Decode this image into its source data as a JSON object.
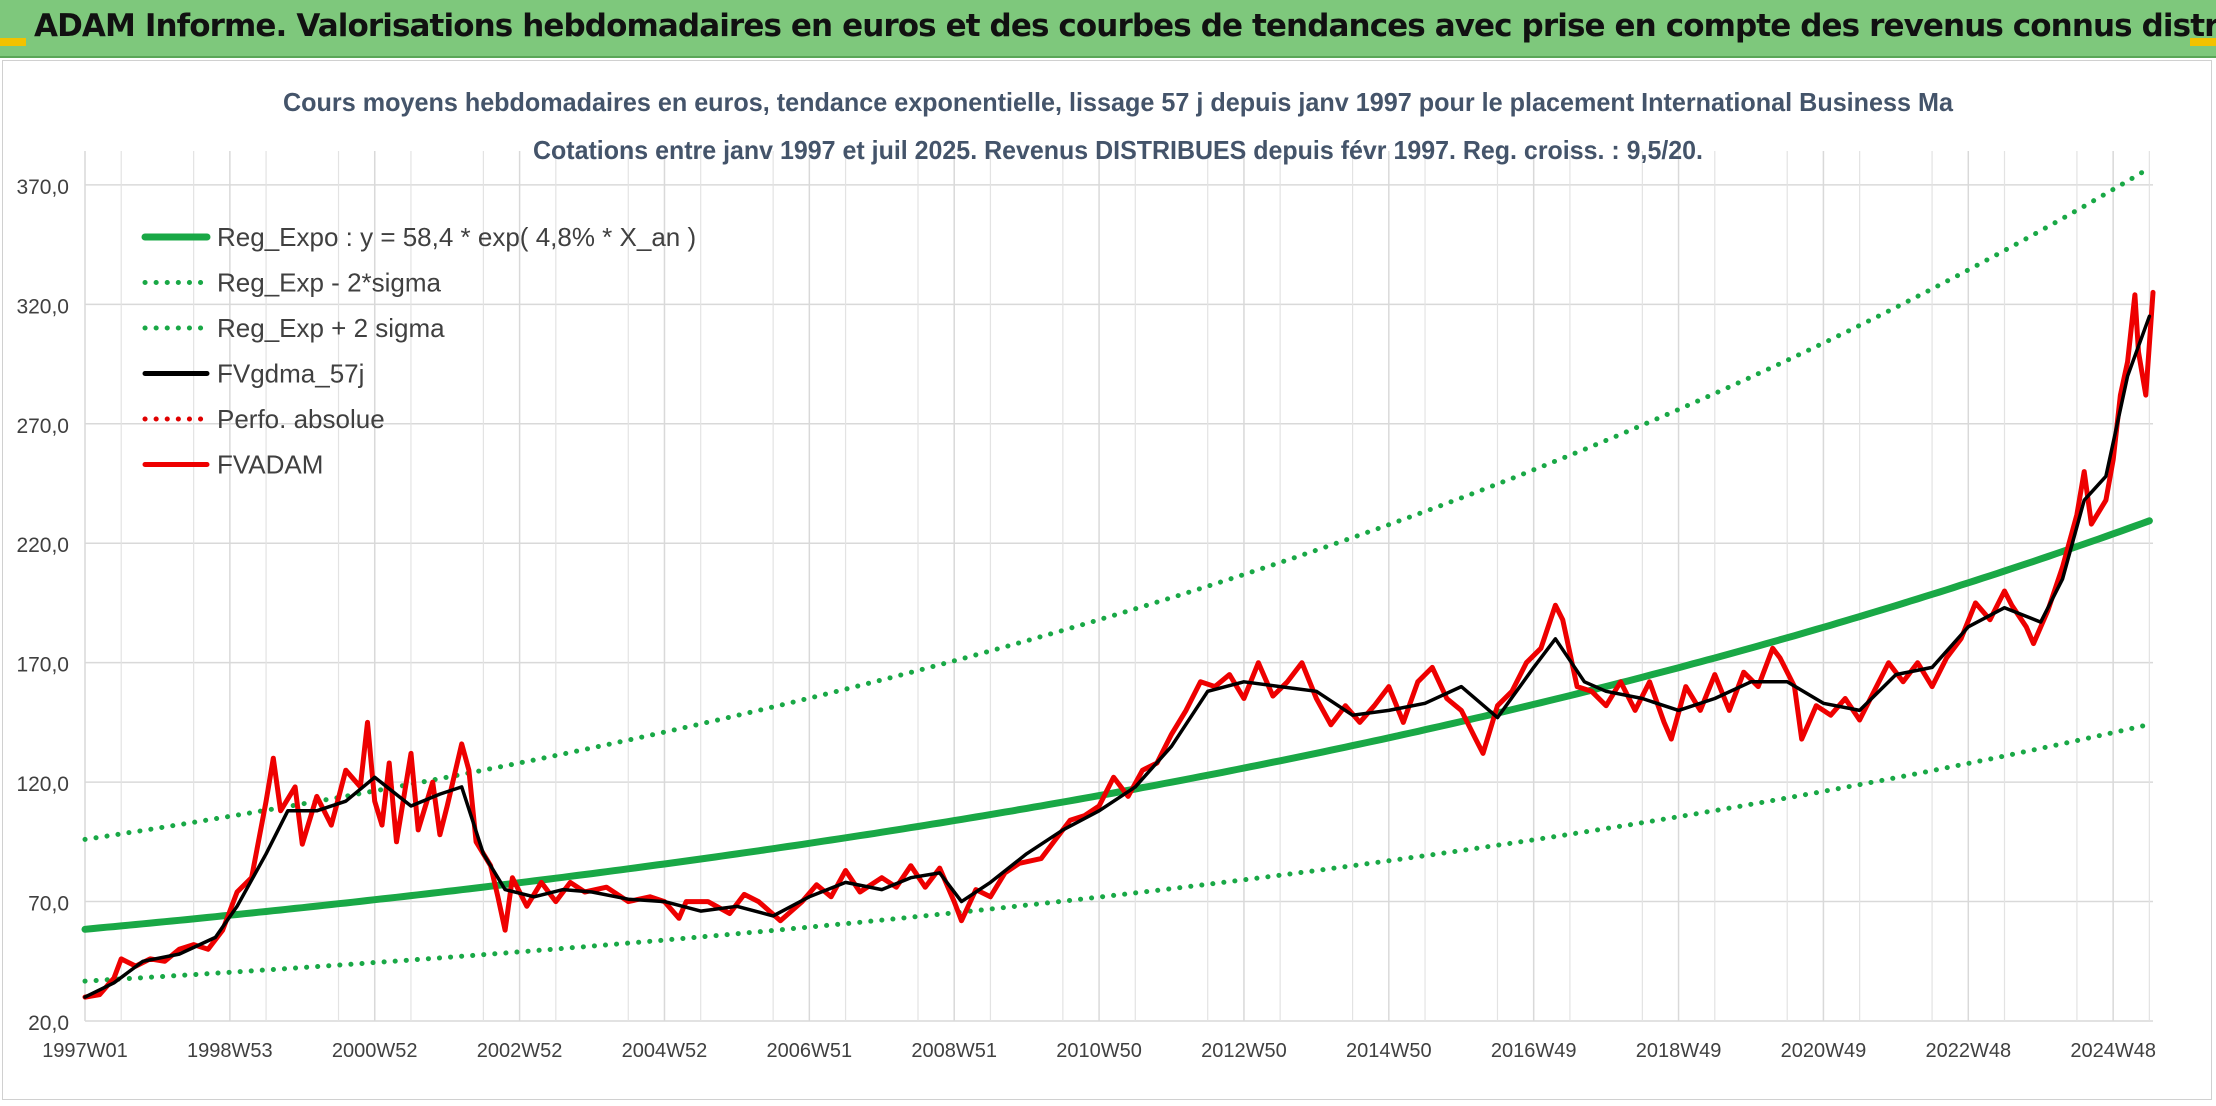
{
  "banner": {
    "title": "ADAM Informe. Valorisations hebdomadaires en euros et des courbes de tendances avec prise en compte des revenus connus distribués"
  },
  "chart_data": {
    "type": "line",
    "title": "Cours moyens hebdomadaires en euros, tendance exponentielle, lissage 57 j depuis janv 1997 pour le placement International Business Ma",
    "subtitle": "Cotations entre janv 1997 et juil 2025. Revenus DISTRIBUES depuis févr 1997. Reg. croiss. : 9,5/20.",
    "xlabel": "",
    "ylabel": "",
    "ylim": [
      20,
      380
    ],
    "y_ticks": [
      "20,0",
      "70,0",
      "120,0",
      "170,0",
      "220,0",
      "270,0",
      "320,0",
      "370,0"
    ],
    "y_tick_values": [
      20,
      70,
      120,
      170,
      220,
      270,
      320,
      370
    ],
    "x_range": [
      1997.0,
      2025.55
    ],
    "x_ticks": [
      "1997W01",
      "1998W53",
      "2000W52",
      "2002W52",
      "2004W52",
      "2006W51",
      "2008W51",
      "2010W50",
      "2012W50",
      "2014W50",
      "2016W49",
      "2018W49",
      "2020W49",
      "2022W48",
      "2024W48"
    ],
    "x_tick_values": [
      1997.0,
      1999.0,
      2001.0,
      2003.0,
      2005.0,
      2007.0,
      2009.0,
      2011.0,
      2013.0,
      2015.0,
      2017.0,
      2019.0,
      2021.0,
      2023.0,
      2025.0
    ],
    "grid": true,
    "legend_position": "top-left",
    "series": [
      {
        "name": "Reg_Expo : y = 58,4 * exp( 4,8% *  X_an )",
        "color": "#19a846",
        "style": "solid",
        "model": {
          "a": 58.4,
          "rate": 0.048
        }
      },
      {
        "name": "Reg_Exp - 2*sigma",
        "color": "#19a846",
        "style": "dotted",
        "model": {
          "a": 36.7,
          "rate": 0.048
        }
      },
      {
        "name": "Reg_Exp + 2 sigma",
        "color": "#19a846",
        "style": "dotted",
        "model": {
          "a": 96.0,
          "rate": 0.048
        }
      },
      {
        "name": "FVgdma_57j",
        "color": "#000000",
        "style": "solid",
        "points": [
          [
            1997.0,
            30
          ],
          [
            1997.4,
            36
          ],
          [
            1997.8,
            45
          ],
          [
            1998.3,
            48
          ],
          [
            1998.8,
            55
          ],
          [
            1999.1,
            68
          ],
          [
            1999.5,
            90
          ],
          [
            1999.8,
            108
          ],
          [
            2000.2,
            108
          ],
          [
            2000.6,
            112
          ],
          [
            2001.0,
            122
          ],
          [
            2001.5,
            110
          ],
          [
            2001.9,
            115
          ],
          [
            2002.2,
            118
          ],
          [
            2002.5,
            90
          ],
          [
            2002.8,
            75
          ],
          [
            2003.2,
            72
          ],
          [
            2003.6,
            75
          ],
          [
            2004.0,
            74
          ],
          [
            2004.5,
            71
          ],
          [
            2005.0,
            70
          ],
          [
            2005.5,
            66
          ],
          [
            2006.0,
            68
          ],
          [
            2006.5,
            64
          ],
          [
            2007.0,
            72
          ],
          [
            2007.5,
            78
          ],
          [
            2008.0,
            75
          ],
          [
            2008.4,
            80
          ],
          [
            2008.8,
            82
          ],
          [
            2009.1,
            70
          ],
          [
            2009.5,
            78
          ],
          [
            2010.0,
            90
          ],
          [
            2010.5,
            100
          ],
          [
            2011.0,
            108
          ],
          [
            2011.5,
            118
          ],
          [
            2012.0,
            135
          ],
          [
            2012.5,
            158
          ],
          [
            2013.0,
            162
          ],
          [
            2013.5,
            160
          ],
          [
            2014.0,
            158
          ],
          [
            2014.5,
            148
          ],
          [
            2015.0,
            150
          ],
          [
            2015.5,
            153
          ],
          [
            2016.0,
            160
          ],
          [
            2016.5,
            147
          ],
          [
            2017.0,
            168
          ],
          [
            2017.3,
            180
          ],
          [
            2017.7,
            162
          ],
          [
            2018.0,
            158
          ],
          [
            2018.5,
            155
          ],
          [
            2019.0,
            150
          ],
          [
            2019.5,
            155
          ],
          [
            2020.0,
            162
          ],
          [
            2020.5,
            162
          ],
          [
            2021.0,
            153
          ],
          [
            2021.5,
            150
          ],
          [
            2022.0,
            165
          ],
          [
            2022.5,
            168
          ],
          [
            2023.0,
            185
          ],
          [
            2023.5,
            193
          ],
          [
            2024.0,
            187
          ],
          [
            2024.3,
            205
          ],
          [
            2024.6,
            238
          ],
          [
            2024.9,
            248
          ],
          [
            2025.2,
            290
          ],
          [
            2025.5,
            315
          ]
        ]
      },
      {
        "name": "Perfo. absolue",
        "color": "#e00000",
        "style": "dotted",
        "points": []
      },
      {
        "name": "FVADAM",
        "color": "#ee0000",
        "style": "solid",
        "points": [
          [
            1997.0,
            30
          ],
          [
            1997.2,
            31
          ],
          [
            1997.4,
            38
          ],
          [
            1997.5,
            46
          ],
          [
            1997.7,
            43
          ],
          [
            1997.9,
            46
          ],
          [
            1998.1,
            45
          ],
          [
            1998.3,
            50
          ],
          [
            1998.5,
            52
          ],
          [
            1998.7,
            50
          ],
          [
            1998.9,
            58
          ],
          [
            1999.1,
            74
          ],
          [
            1999.3,
            80
          ],
          [
            1999.5,
            112
          ],
          [
            1999.6,
            130
          ],
          [
            1999.7,
            108
          ],
          [
            1999.9,
            118
          ],
          [
            2000.0,
            94
          ],
          [
            2000.2,
            114
          ],
          [
            2000.4,
            102
          ],
          [
            2000.6,
            125
          ],
          [
            2000.8,
            118
          ],
          [
            2000.9,
            145
          ],
          [
            2001.0,
            112
          ],
          [
            2001.1,
            102
          ],
          [
            2001.2,
            128
          ],
          [
            2001.3,
            95
          ],
          [
            2001.5,
            132
          ],
          [
            2001.6,
            100
          ],
          [
            2001.8,
            120
          ],
          [
            2001.9,
            98
          ],
          [
            2002.0,
            110
          ],
          [
            2002.2,
            136
          ],
          [
            2002.3,
            125
          ],
          [
            2002.4,
            95
          ],
          [
            2002.6,
            85
          ],
          [
            2002.7,
            72
          ],
          [
            2002.8,
            58
          ],
          [
            2002.9,
            80
          ],
          [
            2003.1,
            68
          ],
          [
            2003.3,
            78
          ],
          [
            2003.5,
            70
          ],
          [
            2003.7,
            78
          ],
          [
            2003.9,
            74
          ],
          [
            2004.2,
            76
          ],
          [
            2004.5,
            70
          ],
          [
            2004.8,
            72
          ],
          [
            2005.0,
            70
          ],
          [
            2005.2,
            63
          ],
          [
            2005.3,
            70
          ],
          [
            2005.6,
            70
          ],
          [
            2005.9,
            65
          ],
          [
            2006.1,
            73
          ],
          [
            2006.3,
            70
          ],
          [
            2006.6,
            62
          ],
          [
            2006.9,
            70
          ],
          [
            2007.1,
            77
          ],
          [
            2007.3,
            72
          ],
          [
            2007.5,
            83
          ],
          [
            2007.7,
            74
          ],
          [
            2008.0,
            80
          ],
          [
            2008.2,
            76
          ],
          [
            2008.4,
            85
          ],
          [
            2008.6,
            76
          ],
          [
            2008.8,
            84
          ],
          [
            2009.0,
            70
          ],
          [
            2009.1,
            62
          ],
          [
            2009.3,
            75
          ],
          [
            2009.5,
            72
          ],
          [
            2009.7,
            82
          ],
          [
            2009.9,
            86
          ],
          [
            2010.2,
            88
          ],
          [
            2010.4,
            96
          ],
          [
            2010.6,
            104
          ],
          [
            2010.8,
            106
          ],
          [
            2011.0,
            110
          ],
          [
            2011.2,
            122
          ],
          [
            2011.4,
            114
          ],
          [
            2011.6,
            125
          ],
          [
            2011.8,
            128
          ],
          [
            2012.0,
            140
          ],
          [
            2012.2,
            150
          ],
          [
            2012.4,
            162
          ],
          [
            2012.6,
            160
          ],
          [
            2012.8,
            165
          ],
          [
            2013.0,
            155
          ],
          [
            2013.2,
            170
          ],
          [
            2013.4,
            156
          ],
          [
            2013.6,
            162
          ],
          [
            2013.8,
            170
          ],
          [
            2014.0,
            155
          ],
          [
            2014.2,
            144
          ],
          [
            2014.4,
            152
          ],
          [
            2014.6,
            145
          ],
          [
            2014.8,
            152
          ],
          [
            2015.0,
            160
          ],
          [
            2015.2,
            145
          ],
          [
            2015.4,
            162
          ],
          [
            2015.6,
            168
          ],
          [
            2015.8,
            155
          ],
          [
            2016.0,
            150
          ],
          [
            2016.2,
            138
          ],
          [
            2016.3,
            132
          ],
          [
            2016.5,
            152
          ],
          [
            2016.7,
            158
          ],
          [
            2016.9,
            170
          ],
          [
            2017.1,
            176
          ],
          [
            2017.3,
            194
          ],
          [
            2017.4,
            188
          ],
          [
            2017.6,
            160
          ],
          [
            2017.8,
            158
          ],
          [
            2018.0,
            152
          ],
          [
            2018.2,
            162
          ],
          [
            2018.4,
            150
          ],
          [
            2018.6,
            162
          ],
          [
            2018.8,
            145
          ],
          [
            2018.9,
            138
          ],
          [
            2019.1,
            160
          ],
          [
            2019.3,
            150
          ],
          [
            2019.5,
            165
          ],
          [
            2019.7,
            150
          ],
          [
            2019.9,
            166
          ],
          [
            2020.1,
            160
          ],
          [
            2020.3,
            176
          ],
          [
            2020.4,
            172
          ],
          [
            2020.6,
            160
          ],
          [
            2020.7,
            138
          ],
          [
            2020.9,
            152
          ],
          [
            2021.1,
            148
          ],
          [
            2021.3,
            155
          ],
          [
            2021.5,
            146
          ],
          [
            2021.7,
            158
          ],
          [
            2021.9,
            170
          ],
          [
            2022.1,
            162
          ],
          [
            2022.3,
            170
          ],
          [
            2022.5,
            160
          ],
          [
            2022.7,
            172
          ],
          [
            2022.9,
            180
          ],
          [
            2023.1,
            195
          ],
          [
            2023.3,
            188
          ],
          [
            2023.5,
            200
          ],
          [
            2023.6,
            194
          ],
          [
            2023.8,
            185
          ],
          [
            2023.9,
            178
          ],
          [
            2024.1,
            192
          ],
          [
            2024.3,
            210
          ],
          [
            2024.5,
            232
          ],
          [
            2024.6,
            250
          ],
          [
            2024.7,
            228
          ],
          [
            2024.9,
            238
          ],
          [
            2025.0,
            255
          ],
          [
            2025.1,
            282
          ],
          [
            2025.2,
            296
          ],
          [
            2025.3,
            324
          ],
          [
            2025.35,
            300
          ],
          [
            2025.45,
            282
          ],
          [
            2025.55,
            325
          ]
        ]
      }
    ]
  }
}
